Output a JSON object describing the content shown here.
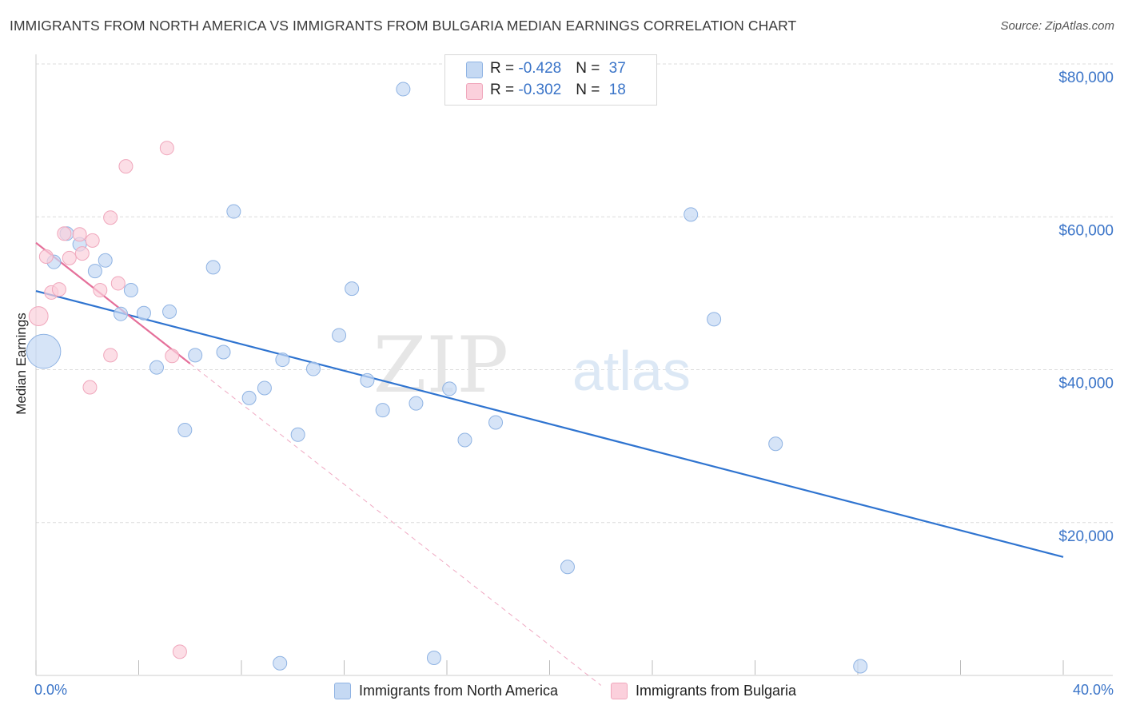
{
  "title": "IMMIGRANTS FROM NORTH AMERICA VS IMMIGRANTS FROM BULGARIA MEDIAN EARNINGS CORRELATION CHART",
  "source": "Source: ZipAtlas.com",
  "watermark": {
    "zip": "ZIP",
    "atlas": "atlas"
  },
  "legend": {
    "r_label": "R =",
    "n_label": "N =",
    "rows": [
      {
        "r": "-0.428",
        "n": "37"
      },
      {
        "r": "-0.302",
        "n": "18"
      }
    ]
  },
  "colors": {
    "north_america_fill": "#c5d9f3",
    "north_america_stroke": "#8fb3e3",
    "north_america_line": "#2f74d0",
    "bulgaria_fill": "#fbd0dc",
    "bulgaria_stroke": "#f0a7bc",
    "bulgaria_line": "#e5709a",
    "grid": "#dcdcdc",
    "axis_label": "#3a74c8"
  },
  "chart_data": {
    "type": "scatter",
    "title": "IMMIGRANTS FROM NORTH AMERICA VS IMMIGRANTS FROM BULGARIA MEDIAN EARNINGS CORRELATION CHART",
    "xlabel": "",
    "ylabel": "Median Earnings",
    "xlim": [
      0,
      40
    ],
    "ylim": [
      0,
      80000
    ],
    "x_tick_labels": [
      "0.0%",
      "40.0%"
    ],
    "y_tick_labels": [
      "$20,000",
      "$40,000",
      "$60,000",
      "$80,000"
    ],
    "y_ticks": [
      20000,
      40000,
      60000,
      80000
    ],
    "grid": true,
    "legend_position": "top-center",
    "series": [
      {
        "name": "Immigrants from North America",
        "r": -0.428,
        "n": 37,
        "trend": {
          "x": [
            0,
            40
          ],
          "y": [
            50300,
            15500
          ]
        },
        "points": [
          {
            "x": 0.3,
            "y": 42400,
            "size": 2.5
          },
          {
            "x": 0.7,
            "y": 54100
          },
          {
            "x": 1.2,
            "y": 57800
          },
          {
            "x": 1.7,
            "y": 56400
          },
          {
            "x": 2.3,
            "y": 52900
          },
          {
            "x": 2.7,
            "y": 54300
          },
          {
            "x": 3.3,
            "y": 47300
          },
          {
            "x": 3.7,
            "y": 50400
          },
          {
            "x": 4.2,
            "y": 47400
          },
          {
            "x": 4.7,
            "y": 40300
          },
          {
            "x": 5.2,
            "y": 47600
          },
          {
            "x": 5.8,
            "y": 32100
          },
          {
            "x": 6.2,
            "y": 41900
          },
          {
            "x": 6.9,
            "y": 53400
          },
          {
            "x": 7.3,
            "y": 42300
          },
          {
            "x": 7.7,
            "y": 60700
          },
          {
            "x": 8.3,
            "y": 36300
          },
          {
            "x": 8.9,
            "y": 37600
          },
          {
            "x": 9.5,
            "y": 1600
          },
          {
            "x": 9.6,
            "y": 41300
          },
          {
            "x": 10.2,
            "y": 31500
          },
          {
            "x": 10.8,
            "y": 40100
          },
          {
            "x": 11.8,
            "y": 44500
          },
          {
            "x": 12.3,
            "y": 50600
          },
          {
            "x": 12.9,
            "y": 38600
          },
          {
            "x": 13.5,
            "y": 34700
          },
          {
            "x": 14.3,
            "y": 76700
          },
          {
            "x": 14.8,
            "y": 35600
          },
          {
            "x": 15.5,
            "y": 2300
          },
          {
            "x": 16.1,
            "y": 37500
          },
          {
            "x": 16.7,
            "y": 30800
          },
          {
            "x": 17.9,
            "y": 33100
          },
          {
            "x": 20.7,
            "y": 14200
          },
          {
            "x": 25.5,
            "y": 60300
          },
          {
            "x": 26.4,
            "y": 46600
          },
          {
            "x": 28.8,
            "y": 30300
          },
          {
            "x": 32.1,
            "y": 1200
          }
        ]
      },
      {
        "name": "Immigrants from Bulgaria",
        "r": -0.302,
        "n": 18,
        "trend": {
          "x": [
            0,
            6
          ],
          "y": [
            56600,
            40800
          ]
        },
        "trend_extension": {
          "x": [
            6,
            22
          ],
          "y": [
            40800,
            -1300
          ]
        },
        "points": [
          {
            "x": 0.1,
            "y": 47000,
            "size": 1.4
          },
          {
            "x": 0.4,
            "y": 54800
          },
          {
            "x": 0.6,
            "y": 50100
          },
          {
            "x": 0.9,
            "y": 50500
          },
          {
            "x": 1.1,
            "y": 57800
          },
          {
            "x": 1.3,
            "y": 54600
          },
          {
            "x": 1.7,
            "y": 57700
          },
          {
            "x": 1.8,
            "y": 55200
          },
          {
            "x": 2.1,
            "y": 37700
          },
          {
            "x": 2.2,
            "y": 56900
          },
          {
            "x": 2.5,
            "y": 50400
          },
          {
            "x": 2.9,
            "y": 41900
          },
          {
            "x": 2.9,
            "y": 59900
          },
          {
            "x": 3.2,
            "y": 51300
          },
          {
            "x": 3.5,
            "y": 66600
          },
          {
            "x": 5.1,
            "y": 69000
          },
          {
            "x": 5.3,
            "y": 41800
          },
          {
            "x": 5.6,
            "y": 3100
          }
        ]
      }
    ]
  },
  "bottom_legend": [
    {
      "label": "Immigrants from North America"
    },
    {
      "label": "Immigrants from Bulgaria"
    }
  ]
}
